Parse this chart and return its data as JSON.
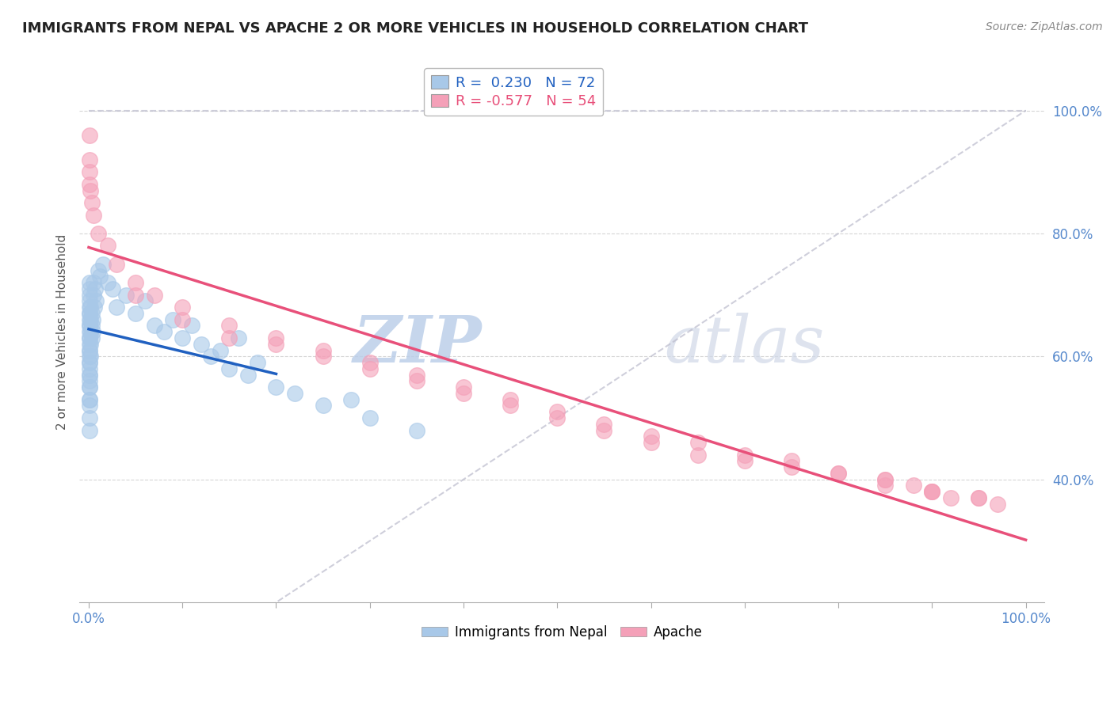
{
  "title": "IMMIGRANTS FROM NEPAL VS APACHE 2 OR MORE VEHICLES IN HOUSEHOLD CORRELATION CHART",
  "source": "Source: ZipAtlas.com",
  "ylabel": "2 or more Vehicles in Household",
  "legend_labels": [
    "Immigrants from Nepal",
    "Apache"
  ],
  "blue_R": 0.23,
  "blue_N": 72,
  "pink_R": -0.577,
  "pink_N": 54,
  "blue_color": "#a8c8e8",
  "pink_color": "#f4a0b8",
  "blue_line_color": "#2060c0",
  "pink_line_color": "#e8507a",
  "watermark_zip_color": "#b8cce8",
  "watermark_atlas_color": "#d0d8e8",
  "grid_color": "#cccccc",
  "spine_color": "#aaaaaa",
  "tick_color": "#5588cc",
  "title_color": "#222222",
  "source_color": "#888888",
  "ylabel_color": "#555555",
  "ref_line_color": "#bbbbcc",
  "blue_x": [
    0.05,
    0.05,
    0.05,
    0.05,
    0.05,
    0.05,
    0.05,
    0.05,
    0.05,
    0.05,
    0.05,
    0.05,
    0.05,
    0.05,
    0.05,
    0.05,
    0.05,
    0.05,
    0.05,
    0.05,
    0.1,
    0.1,
    0.1,
    0.1,
    0.1,
    0.1,
    0.1,
    0.1,
    0.1,
    0.1,
    0.2,
    0.2,
    0.2,
    0.2,
    0.2,
    0.3,
    0.3,
    0.3,
    0.4,
    0.4,
    0.5,
    0.5,
    0.6,
    0.7,
    0.8,
    1.0,
    1.2,
    1.5,
    2.0,
    2.5,
    3.0,
    4.0,
    5.0,
    6.0,
    7.0,
    8.0,
    9.0,
    10.0,
    11.0,
    12.0,
    13.0,
    14.0,
    15.0,
    16.0,
    17.0,
    18.0,
    20.0,
    22.0,
    25.0,
    28.0,
    30.0,
    35.0
  ],
  "blue_y": [
    62,
    64,
    60,
    58,
    63,
    61,
    59,
    65,
    57,
    66,
    55,
    67,
    56,
    68,
    53,
    70,
    52,
    50,
    72,
    48,
    63,
    61,
    65,
    59,
    67,
    57,
    69,
    55,
    71,
    53,
    64,
    66,
    62,
    60,
    68,
    65,
    63,
    67,
    64,
    66,
    70,
    72,
    68,
    71,
    69,
    74,
    73,
    75,
    72,
    71,
    68,
    70,
    67,
    69,
    65,
    64,
    66,
    63,
    65,
    62,
    60,
    61,
    58,
    63,
    57,
    59,
    55,
    54,
    52,
    53,
    50,
    48
  ],
  "pink_x": [
    0.05,
    0.05,
    0.1,
    0.1,
    0.2,
    0.3,
    0.5,
    1.0,
    2.0,
    3.0,
    5.0,
    7.0,
    10.0,
    15.0,
    20.0,
    25.0,
    30.0,
    35.0,
    40.0,
    45.0,
    50.0,
    55.0,
    60.0,
    65.0,
    70.0,
    75.0,
    80.0,
    85.0,
    88.0,
    90.0,
    92.0,
    95.0,
    97.0,
    10.0,
    20.0,
    30.0,
    40.0,
    50.0,
    60.0,
    70.0,
    80.0,
    85.0,
    90.0,
    95.0,
    25.0,
    35.0,
    45.0,
    55.0,
    65.0,
    75.0,
    5.0,
    15.0,
    85.0,
    90.0
  ],
  "pink_y": [
    96,
    92,
    90,
    88,
    87,
    85,
    83,
    80,
    78,
    75,
    72,
    70,
    68,
    65,
    63,
    61,
    59,
    57,
    55,
    53,
    51,
    49,
    47,
    46,
    44,
    43,
    41,
    40,
    39,
    38,
    37,
    37,
    36,
    66,
    62,
    58,
    54,
    50,
    46,
    43,
    41,
    40,
    38,
    37,
    60,
    56,
    52,
    48,
    44,
    42,
    70,
    63,
    39,
    38
  ]
}
